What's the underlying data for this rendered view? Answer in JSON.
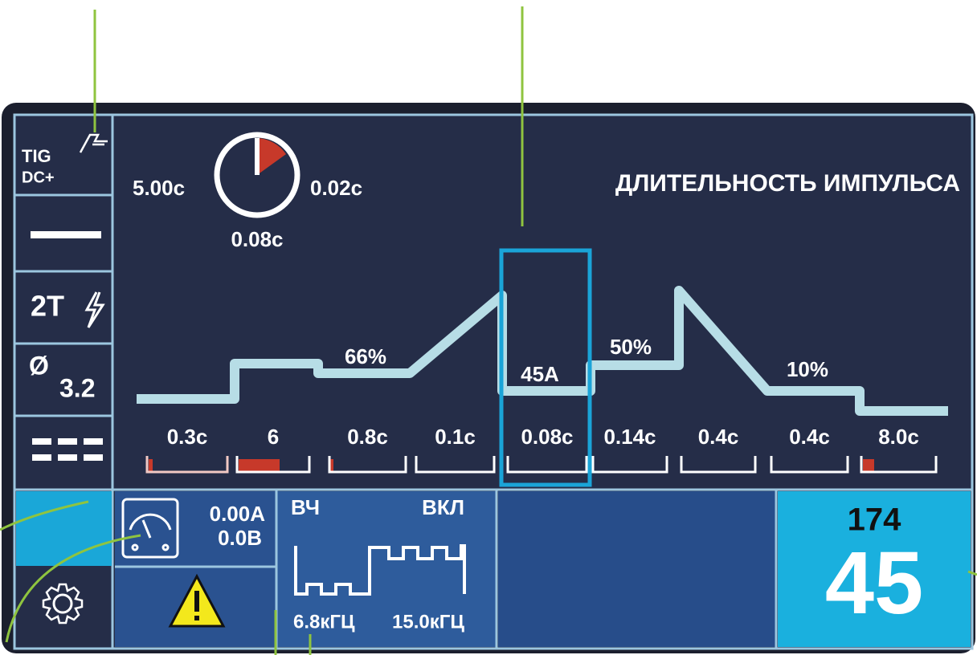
{
  "sidebar": {
    "mode": "TIG",
    "polarity": "DC+",
    "trigger": "2T",
    "electrode_symbol": "Ø",
    "electrode_diameter": "3.2"
  },
  "timer": {
    "left": "5.00с",
    "right": "0.02с",
    "bottom": "0.08с"
  },
  "parameter_title": "ДЛИТЕЛЬНОСТЬ ИМПУЛЬСА",
  "wave_labels": [
    "66%",
    "45А",
    "50%",
    "10%"
  ],
  "segments": [
    "0.3с",
    "6",
    "0.8с",
    "0.1с",
    "0.08с",
    "0.14с",
    "0.4с",
    "0.4с",
    "8.0с"
  ],
  "meter": {
    "current": "0.00A",
    "voltage": "0.0B"
  },
  "hf": {
    "label": "ВЧ",
    "state": "ВКЛ",
    "freq_low": "6.8кГЦ",
    "freq_high": "15.0кГЦ"
  },
  "display": {
    "small": "174",
    "large": "45"
  }
}
